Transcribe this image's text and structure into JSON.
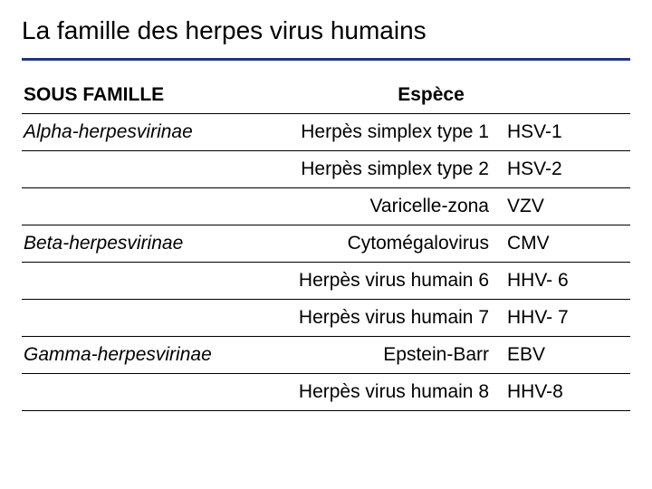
{
  "title": "La famille des herpes virus humains",
  "columns": {
    "subfamily": "SOUS FAMILLE",
    "species": "Espèce"
  },
  "rows": [
    {
      "subfamily": "Alpha-herpesvirinae",
      "species": "Herpès simplex type 1",
      "abbr": "HSV-1"
    },
    {
      "subfamily": "",
      "species": "Herpès simplex type 2",
      "abbr": "HSV-2"
    },
    {
      "subfamily": "",
      "species": "Varicelle-zona",
      "abbr": "VZV"
    },
    {
      "subfamily": "Beta-herpesvirinae",
      "species": "Cytomégalovirus",
      "abbr": "CMV"
    },
    {
      "subfamily": "",
      "species": "Herpès virus humain 6",
      "abbr": "HHV- 6"
    },
    {
      "subfamily": "",
      "species": "Herpès virus humain 7",
      "abbr": "HHV- 7"
    },
    {
      "subfamily": "Gamma-herpesvirinae",
      "species": "Epstein-Barr",
      "abbr": "EBV"
    },
    {
      "subfamily": "",
      "species": "Herpès virus humain 8",
      "abbr": "HHV-8"
    }
  ],
  "colors": {
    "rule": "#1f3a7a",
    "text": "#000000",
    "background": "#ffffff"
  }
}
